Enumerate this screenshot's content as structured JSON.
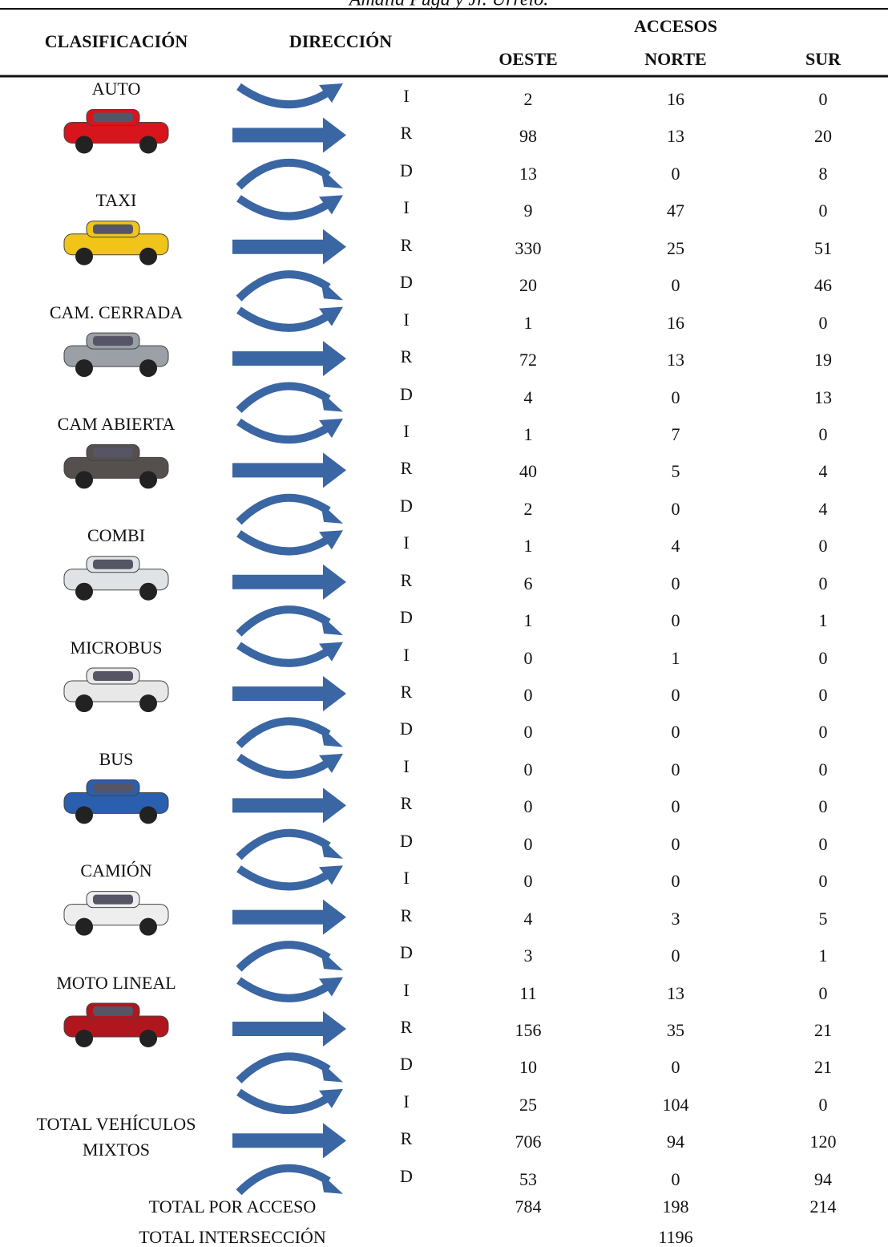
{
  "caption": "Amalia Puga y Jr. Urrelo.",
  "header": {
    "classification": "CLASIFICACIÓN",
    "direction": "DIRECCIÓN",
    "access": "ACCESOS",
    "columns": [
      "OESTE",
      "NORTE",
      "SUR"
    ]
  },
  "groups": [
    {
      "label": "AUTO",
      "rows": [
        {
          "direction": "I",
          "values": [
            2,
            16,
            0
          ]
        },
        {
          "direction": "R",
          "values": [
            98,
            13,
            20
          ]
        },
        {
          "direction": "D",
          "values": [
            13,
            0,
            8
          ]
        }
      ]
    },
    {
      "label": "TAXI",
      "rows": [
        {
          "direction": "I",
          "values": [
            9,
            47,
            0
          ]
        },
        {
          "direction": "R",
          "values": [
            330,
            25,
            51
          ]
        },
        {
          "direction": "D",
          "values": [
            20,
            0,
            46
          ]
        }
      ]
    },
    {
      "label": "CAM. CERRADA",
      "rows": [
        {
          "direction": "I",
          "values": [
            1,
            16,
            0
          ]
        },
        {
          "direction": "R",
          "values": [
            72,
            13,
            19
          ]
        },
        {
          "direction": "D",
          "values": [
            4,
            0,
            13
          ]
        }
      ]
    },
    {
      "label": "CAM ABIERTA",
      "rows": [
        {
          "direction": "I",
          "values": [
            1,
            7,
            0
          ]
        },
        {
          "direction": "R",
          "values": [
            40,
            5,
            4
          ]
        },
        {
          "direction": "D",
          "values": [
            2,
            0,
            4
          ]
        }
      ]
    },
    {
      "label": "COMBI",
      "rows": [
        {
          "direction": "I",
          "values": [
            1,
            4,
            0
          ]
        },
        {
          "direction": "R",
          "values": [
            6,
            0,
            0
          ]
        },
        {
          "direction": "D",
          "values": [
            1,
            0,
            1
          ]
        }
      ]
    },
    {
      "label": "MICROBUS",
      "rows": [
        {
          "direction": "I",
          "values": [
            0,
            1,
            0
          ]
        },
        {
          "direction": "R",
          "values": [
            0,
            0,
            0
          ]
        },
        {
          "direction": "D",
          "values": [
            0,
            0,
            0
          ]
        }
      ]
    },
    {
      "label": "BUS",
      "rows": [
        {
          "direction": "I",
          "values": [
            0,
            0,
            0
          ]
        },
        {
          "direction": "R",
          "values": [
            0,
            0,
            0
          ]
        },
        {
          "direction": "D",
          "values": [
            0,
            0,
            0
          ]
        }
      ]
    },
    {
      "label": "CAMIÓN",
      "rows": [
        {
          "direction": "I",
          "values": [
            0,
            0,
            0
          ]
        },
        {
          "direction": "R",
          "values": [
            4,
            3,
            5
          ]
        },
        {
          "direction": "D",
          "values": [
            3,
            0,
            1
          ]
        }
      ]
    },
    {
      "label": "MOTO LINEAL",
      "rows": [
        {
          "direction": "I",
          "values": [
            11,
            13,
            0
          ]
        },
        {
          "direction": "R",
          "values": [
            156,
            35,
            21
          ]
        },
        {
          "direction": "D",
          "values": [
            10,
            0,
            21
          ]
        }
      ]
    },
    {
      "label": "TOTAL VEHÍCULOS MIXTOS",
      "rows": [
        {
          "direction": "I",
          "values": [
            25,
            104,
            0
          ]
        },
        {
          "direction": "R",
          "values": [
            706,
            94,
            120
          ]
        },
        {
          "direction": "D",
          "values": [
            53,
            0,
            94
          ]
        }
      ]
    }
  ],
  "totals": {
    "by_access_label": "TOTAL POR ACCESO",
    "by_access": [
      784,
      198,
      214
    ],
    "intersection_label": "TOTAL INTERSECCIÓN",
    "intersection": 1196
  }
}
